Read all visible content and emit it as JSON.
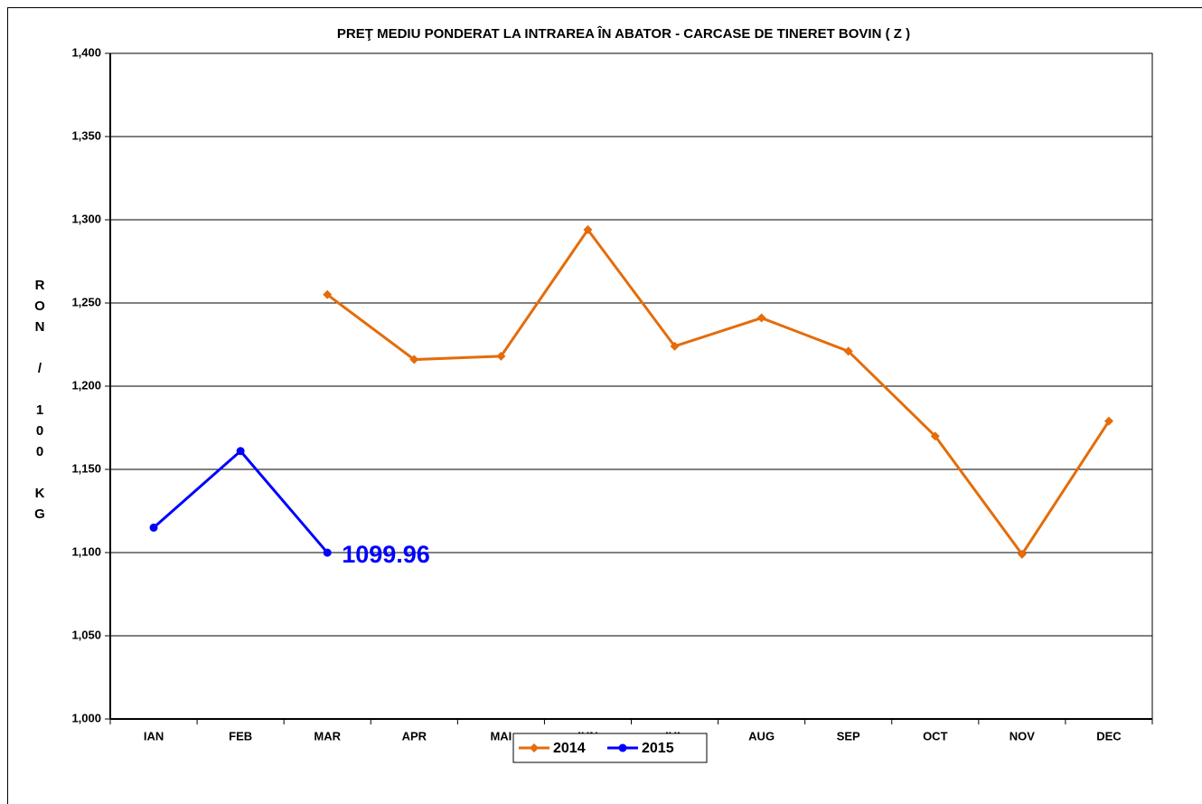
{
  "chart_data": {
    "type": "line",
    "title": "PREŢ MEDIU PONDERAT LA INTRAREA ÎN ABATOR - CARCASE DE TINERET BOVIN ( Z )",
    "y_label": "RON / 100 KG",
    "categories": [
      "IAN",
      "FEB",
      "MAR",
      "APR",
      "MAI",
      "IUN",
      "IUL",
      "AUG",
      "SEP",
      "OCT",
      "NOV",
      "DEC"
    ],
    "series": [
      {
        "name": "2014",
        "color": "#e46c0a",
        "marker": "diamond",
        "values": [
          null,
          null,
          1255,
          1216,
          1218,
          1294,
          1224,
          1241,
          1221,
          1170,
          1099,
          1179
        ]
      },
      {
        "name": "2015",
        "color": "#0000ff",
        "marker": "circle",
        "values": [
          1115,
          1161,
          1099.96,
          null,
          null,
          null,
          null,
          null,
          null,
          null,
          null,
          null
        ],
        "value_labels": [
          null,
          null,
          "1099.96",
          null,
          null,
          null,
          null,
          null,
          null,
          null,
          null,
          null
        ]
      }
    ],
    "ylim": [
      1000,
      1400
    ],
    "yticks": [
      {
        "value": 1000,
        "label": "1,000"
      },
      {
        "value": 1050,
        "label": "1,050"
      },
      {
        "value": 1100,
        "label": "1,100"
      },
      {
        "value": 1150,
        "label": "1,150"
      },
      {
        "value": 1200,
        "label": "1,200"
      },
      {
        "value": 1250,
        "label": "1,250"
      },
      {
        "value": 1300,
        "label": "1,300"
      },
      {
        "value": 1350,
        "label": "1,350"
      },
      {
        "value": 1400,
        "label": "1,400"
      }
    ],
    "grid": true,
    "legend": "bottom"
  }
}
